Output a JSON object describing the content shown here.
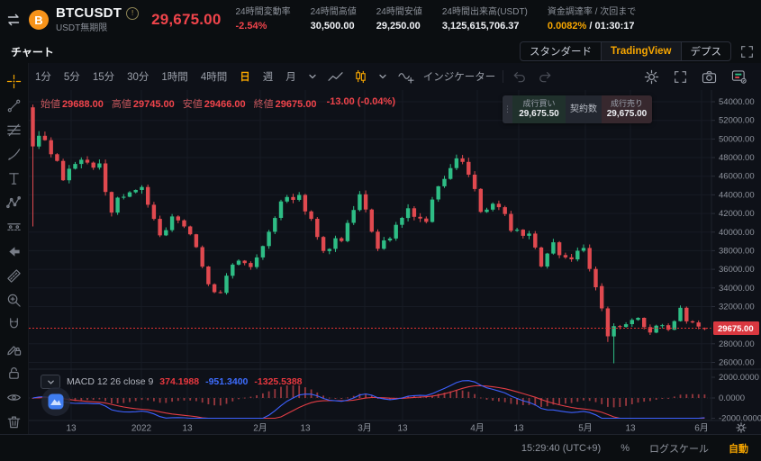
{
  "colors": {
    "accent": "#f7a600",
    "red_text": "#f0444b",
    "green": "#2ebd85",
    "candle_up": "#2ebd85",
    "candle_down": "#e0494f",
    "macd_line": "#3d61ff",
    "signal_line": "#e23d45",
    "histogram": "#9e3a40",
    "price_line": "#e03131",
    "price_label_bg": "#d93840"
  },
  "header": {
    "symbol": "BTCUSDT",
    "contract_type": "USDT無期限",
    "last_price": "29,675.00",
    "stats": [
      {
        "label": "24時間変動率",
        "value": "-2.54%",
        "value_color": "#f0444b"
      },
      {
        "label": "24時間高値",
        "value": "30,500.00"
      },
      {
        "label": "24時間安値",
        "value": "29,250.00"
      },
      {
        "label": "24時間出来高(USDT)",
        "value": "3,125,615,706.37"
      },
      {
        "label": "資金調達率 / 次回まで",
        "value": "0.0082%",
        "value_color": "#f7a600",
        "value2": " / 01:30:17",
        "value2_color": "#eef0f4"
      }
    ]
  },
  "tabs": {
    "chart_tab": "チャート",
    "view_modes": [
      "スタンダード",
      "TradingView",
      "デプス"
    ],
    "active_mode": "TradingView"
  },
  "toolbar": {
    "timeframes": [
      "1分",
      "5分",
      "15分",
      "30分",
      "1時間",
      "4時間",
      "日",
      "週",
      "月"
    ],
    "active_timeframe": "日",
    "indicators_label": "インジケーター"
  },
  "sidebar_tools": [
    {
      "name": "crosshair",
      "active": true
    },
    {
      "name": "trend-line"
    },
    {
      "name": "fib-tool"
    },
    {
      "name": "brush"
    },
    {
      "name": "text"
    },
    {
      "name": "pattern"
    },
    {
      "name": "projection"
    },
    {
      "name": "arrow-left"
    },
    {
      "name": "ruler"
    },
    {
      "name": "zoom-in"
    },
    {
      "name": "magnet"
    },
    {
      "name": "draw-lock"
    },
    {
      "name": "lock"
    },
    {
      "name": "eye"
    },
    {
      "name": "trash"
    }
  ],
  "ohlc": {
    "open_label": "始値",
    "open": "29688.00",
    "high_label": "高値",
    "high": "29745.00",
    "low_label": "安値",
    "low": "29466.00",
    "close_label": "終値",
    "close": "29675.00",
    "change": "-13.00 (-0.04%)"
  },
  "order_widget": {
    "buy_label": "成行買い",
    "buy_price": "29,675.50",
    "qty_label": "契約数",
    "sell_label": "成行売り",
    "sell_price": "29,675.00"
  },
  "status_bar": {
    "clock": "15:29:40 (UTC+9)",
    "percent_label": "%",
    "log_label": "ログスケール",
    "auto_label": "自動"
  },
  "chart_data": {
    "type": "candlestick",
    "title": "BTCUSDT 日足 (TradingView)",
    "current_price": 29675.0,
    "current_price_label": "29675.00",
    "y_axis": {
      "min": 25800,
      "max": 54400,
      "ticks": [
        54000,
        52000,
        50000,
        48000,
        46000,
        44000,
        42000,
        40000,
        38000,
        36000,
        34000,
        32000,
        28000,
        26000
      ]
    },
    "x_axis": {
      "labels": [
        {
          "text": "13",
          "x": 47
        },
        {
          "text": "2022",
          "x": 125
        },
        {
          "text": "13",
          "x": 176
        },
        {
          "text": "2月",
          "x": 257
        },
        {
          "text": "13",
          "x": 307
        },
        {
          "text": "3月",
          "x": 373
        },
        {
          "text": "13",
          "x": 415
        },
        {
          "text": "4月",
          "x": 498
        },
        {
          "text": "13",
          "x": 544
        },
        {
          "text": "5月",
          "x": 618
        },
        {
          "text": "13",
          "x": 668
        },
        {
          "text": "6月",
          "x": 747
        }
      ]
    },
    "num_candles": 112,
    "seed": 20220607,
    "price_path_anchors": [
      [
        0,
        49300
      ],
      [
        2,
        50300
      ],
      [
        5,
        45800
      ],
      [
        8,
        47600
      ],
      [
        11,
        47000
      ],
      [
        13,
        42600
      ],
      [
        16,
        44600
      ],
      [
        18,
        45000
      ],
      [
        21,
        39600
      ],
      [
        23,
        41600
      ],
      [
        26,
        40000
      ],
      [
        29,
        34200
      ],
      [
        31,
        33300
      ],
      [
        33,
        36600
      ],
      [
        36,
        36400
      ],
      [
        38,
        38500
      ],
      [
        41,
        43100
      ],
      [
        44,
        43600
      ],
      [
        46,
        41000
      ],
      [
        48,
        37900
      ],
      [
        51,
        39500
      ],
      [
        54,
        44300
      ],
      [
        57,
        38000
      ],
      [
        59,
        39600
      ],
      [
        62,
        42400
      ],
      [
        65,
        41500
      ],
      [
        67,
        44500
      ],
      [
        70,
        47800
      ],
      [
        72,
        46300
      ],
      [
        74,
        42400
      ],
      [
        77,
        42900
      ],
      [
        79,
        40200
      ],
      [
        82,
        39700
      ],
      [
        84,
        36400
      ],
      [
        86,
        38600
      ],
      [
        88,
        37000
      ],
      [
        91,
        38100
      ],
      [
        93,
        34000
      ],
      [
        96,
        28700
      ],
      [
        98,
        30300
      ],
      [
        100,
        30800
      ],
      [
        102,
        29300
      ],
      [
        104,
        30000
      ],
      [
        105,
        29300
      ],
      [
        107,
        31800
      ],
      [
        108,
        30400
      ],
      [
        110,
        29800
      ],
      [
        111,
        29675
      ]
    ],
    "candle_overrides": {
      "0": [
        53400,
        53700,
        40600,
        49200
      ],
      "94": [
        34200,
        34500,
        31500,
        31800
      ],
      "95": [
        31800,
        32000,
        28200,
        28800
      ],
      "96": [
        28800,
        30200,
        25900,
        29900
      ],
      "111": [
        29688,
        29745,
        29466,
        29675
      ]
    },
    "macd": {
      "title": "MACD 12 26 close 9",
      "fast": 12,
      "slow": 26,
      "signal": 9,
      "display_values": {
        "hist": "374.1988",
        "macd": "-951.3400",
        "signal": "-1325.5388"
      },
      "y_ticks": [
        2000,
        0,
        -2000
      ]
    }
  }
}
